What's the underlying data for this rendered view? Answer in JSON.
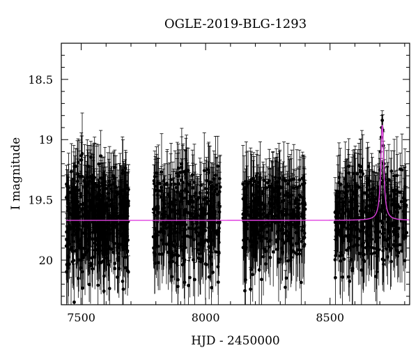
{
  "chart_data": {
    "type": "scatter",
    "title": "OGLE-2019-BLG-1293",
    "xlabel": "HJD - 2450000",
    "ylabel": "I magnitude",
    "xlim": [
      7420,
      8820
    ],
    "ylim": [
      20.37,
      18.2
    ],
    "y_inverted": true,
    "x_ticks": [
      7500,
      8000,
      8500
    ],
    "y_ticks": [
      18.5,
      19,
      19.5,
      20
    ],
    "x_tick_labels": [
      "7500",
      "8000",
      "8500"
    ],
    "y_tick_labels": [
      "18.5",
      "19",
      "19.5",
      "20"
    ],
    "grid": false,
    "colors": {
      "points": "#000000",
      "model": "#e040e0",
      "axes": "#000000"
    },
    "data_segments": [
      {
        "x_range": [
          7440,
          7690
        ],
        "mean_mag": 19.66,
        "scatter_mag": 0.22,
        "min_mag": 19.1,
        "approx_points": 520
      },
      {
        "x_range": [
          7790,
          8060
        ],
        "mean_mag": 19.66,
        "scatter_mag": 0.2,
        "min_mag": 19.2,
        "approx_points": 380
      },
      {
        "x_range": [
          8150,
          8400
        ],
        "mean_mag": 19.66,
        "scatter_mag": 0.2,
        "min_mag": 19.3,
        "approx_points": 380
      },
      {
        "x_range": [
          8520,
          8810
        ],
        "mean_mag": 19.66,
        "scatter_mag": 0.2,
        "min_mag": 19.2,
        "approx_points": 400
      }
    ],
    "peak_points": [
      {
        "x": 8700,
        "y": 19.25
      },
      {
        "x": 8703,
        "y": 19.1
      },
      {
        "x": 8706,
        "y": 18.98
      },
      {
        "x": 8708,
        "y": 18.9
      },
      {
        "x": 8710,
        "y": 18.84
      },
      {
        "x": 8712,
        "y": 18.92
      },
      {
        "x": 8714,
        "y": 19.05
      },
      {
        "x": 8717,
        "y": 19.2
      },
      {
        "x": 8720,
        "y": 19.33
      }
    ],
    "model": {
      "name": "",
      "baseline": 19.67,
      "t0": 8710,
      "peak_mag": 18.88,
      "tE_days": 7,
      "x_range": [
        7440,
        8820
      ]
    }
  }
}
